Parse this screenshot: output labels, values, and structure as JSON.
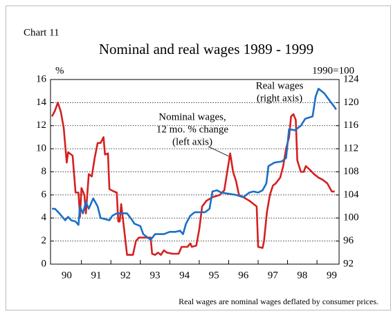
{
  "chart_data": {
    "type": "line",
    "caption": "Chart 11",
    "title": "Nominal and real wages 1989 - 1999",
    "ylabel": "%",
    "y2label": "1990=100",
    "note": "Real wages are nominal wages deflated by consumer prices.",
    "annotations": [
      [
        "Real wages",
        "(right axis)"
      ],
      [
        "Nominal wages,",
        "12 mo. % change",
        "(left axis)"
      ]
    ],
    "xlim": [
      1989.95,
      1999.75
    ],
    "xticks": [
      {
        "value": 1990.5,
        "label": "90"
      },
      {
        "value": 1991.5,
        "label": "91"
      },
      {
        "value": 1992.5,
        "label": "92"
      },
      {
        "value": 1993.5,
        "label": "93"
      },
      {
        "value": 1994.5,
        "label": "94"
      },
      {
        "value": 1995.5,
        "label": "95"
      },
      {
        "value": 1996.5,
        "label": "96"
      },
      {
        "value": 1997.5,
        "label": "97"
      },
      {
        "value": 1998.5,
        "label": "98"
      },
      {
        "value": 1999.5,
        "label": "99"
      }
    ],
    "ylim": [
      0,
      16
    ],
    "yticks": [
      0,
      2,
      4,
      6,
      8,
      10,
      12,
      14,
      16
    ],
    "y2lim": [
      92,
      124
    ],
    "y2ticks": [
      92,
      96,
      100,
      104,
      108,
      112,
      116,
      120,
      124
    ],
    "grid": true,
    "series": [
      {
        "name": "Nominal wages",
        "color": "#d42020",
        "x": [
          1990.0,
          1990.1,
          1990.2,
          1990.3,
          1990.4,
          1990.5,
          1990.55,
          1990.7,
          1990.8,
          1990.9,
          1990.95,
          1991.0,
          1991.1,
          1991.15,
          1991.25,
          1991.35,
          1991.45,
          1991.55,
          1991.65,
          1991.75,
          1991.8,
          1991.9,
          1991.95,
          1992.1,
          1992.2,
          1992.25,
          1992.3,
          1992.35,
          1992.45,
          1992.55,
          1992.75,
          1992.85,
          1992.95,
          1993.35,
          1993.4,
          1993.5,
          1993.6,
          1993.7,
          1993.8,
          1993.9,
          1994.1,
          1994.3,
          1994.4,
          1994.6,
          1994.7,
          1994.75,
          1994.9,
          1995.0,
          1995.1,
          1995.25,
          1995.45,
          1995.7,
          1995.85,
          1996.05,
          1996.15,
          1996.25,
          1996.35,
          1996.5,
          1996.7,
          1996.85,
          1996.95,
          1997.0,
          1997.15,
          1997.2,
          1997.3,
          1997.4,
          1997.5,
          1997.6,
          1997.75,
          1997.85,
          1997.95,
          1998.05,
          1998.12,
          1998.2,
          1998.28,
          1998.33,
          1998.45,
          1998.55,
          1998.62,
          1998.75,
          1998.9,
          1999.05,
          1999.2,
          1999.35,
          1999.5,
          1999.6
        ],
        "values": [
          12.8,
          13.3,
          14.0,
          13.2,
          11.8,
          8.8,
          9.7,
          9.4,
          6.2,
          6.2,
          4.1,
          6.6,
          6.0,
          4.4,
          7.8,
          7.6,
          9.2,
          10.5,
          10.5,
          11.0,
          9.5,
          9.6,
          6.5,
          6.3,
          6.2,
          3.7,
          3.7,
          5.2,
          3.0,
          0.8,
          0.8,
          2.0,
          2.3,
          2.3,
          0.9,
          0.8,
          1.0,
          0.8,
          1.2,
          1.0,
          0.9,
          0.9,
          1.5,
          1.5,
          1.8,
          1.5,
          1.6,
          3.0,
          5.0,
          5.5,
          5.8,
          6.0,
          6.4,
          9.6,
          8.0,
          7.2,
          6.0,
          5.8,
          5.5,
          5.2,
          5.0,
          1.5,
          1.4,
          2.0,
          4.5,
          6.0,
          6.8,
          7.0,
          7.5,
          8.5,
          10.0,
          11.0,
          12.8,
          13.0,
          12.5,
          9.0,
          8.0,
          8.0,
          8.5,
          8.2,
          7.8,
          7.5,
          7.3,
          7.0,
          6.3,
          6.3
        ]
      },
      {
        "name": "Real wages",
        "color": "#1a6fc6",
        "axis": "y2",
        "x": [
          1990.0,
          1990.1,
          1990.25,
          1990.35,
          1990.45,
          1990.55,
          1990.65,
          1990.8,
          1990.9,
          1990.95,
          1991.05,
          1991.15,
          1991.25,
          1991.4,
          1991.55,
          1991.65,
          1991.8,
          1991.95,
          1992.05,
          1992.2,
          1992.55,
          1992.7,
          1992.8,
          1993.0,
          1993.1,
          1993.25,
          1993.35,
          1993.5,
          1993.8,
          1994.0,
          1994.2,
          1994.35,
          1994.45,
          1994.55,
          1994.7,
          1994.85,
          1995.2,
          1995.35,
          1995.45,
          1995.6,
          1995.75,
          1996.0,
          1996.25,
          1996.5,
          1996.7,
          1996.85,
          1997.0,
          1997.15,
          1997.28,
          1997.35,
          1997.55,
          1997.8,
          1997.95,
          1998.05,
          1998.25,
          1998.45,
          1998.6,
          1998.85,
          1998.95,
          1999.05,
          1999.25,
          1999.45,
          1999.6,
          1999.65
        ],
        "values": [
          101.6,
          101.6,
          100.8,
          100.2,
          99.6,
          100.2,
          99.6,
          99.4,
          98.8,
          102.0,
          100.8,
          102.8,
          101.6,
          103.4,
          102.0,
          100.0,
          99.8,
          99.6,
          100.4,
          100.8,
          100.8,
          99.8,
          99.0,
          98.6,
          97.2,
          96.6,
          96.2,
          97.2,
          97.2,
          97.6,
          97.6,
          97.8,
          97.2,
          99.0,
          100.4,
          101.0,
          101.0,
          101.6,
          104.6,
          104.8,
          104.4,
          104.2,
          104.0,
          103.6,
          104.4,
          104.6,
          104.4,
          104.8,
          106.0,
          109.0,
          109.6,
          109.8,
          110.4,
          115.4,
          115.2,
          116.0,
          117.2,
          117.6,
          121.0,
          122.4,
          121.6,
          120.2,
          119.2,
          118.8
        ]
      }
    ]
  }
}
